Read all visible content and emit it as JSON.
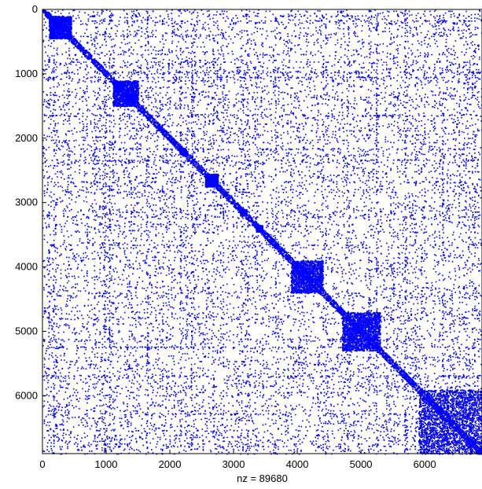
{
  "chart_data": {
    "type": "spy",
    "title": "",
    "xlabel": "nz = 89680",
    "ylabel": "",
    "nnz": 89680,
    "n": 6900,
    "xlim": [
      0,
      6900
    ],
    "ylim": [
      6900,
      0
    ],
    "xticks": [
      0,
      1000,
      2000,
      3000,
      4000,
      5000,
      6000
    ],
    "yticks": [
      0,
      1000,
      2000,
      3000,
      4000,
      5000,
      6000
    ],
    "grid": false,
    "marker_color": "#0000ff",
    "diagonal_blocks": [
      {
        "start": 100,
        "end": 450
      },
      {
        "start": 1100,
        "end": 1500
      },
      {
        "start": 2150,
        "end": 2250
      },
      {
        "start": 2550,
        "end": 2750
      },
      {
        "start": 3100,
        "end": 3200
      },
      {
        "start": 3350,
        "end": 3450
      },
      {
        "start": 3900,
        "end": 4400
      },
      {
        "start": 4700,
        "end": 5300
      },
      {
        "start": 5900,
        "end": 6900
      }
    ]
  }
}
